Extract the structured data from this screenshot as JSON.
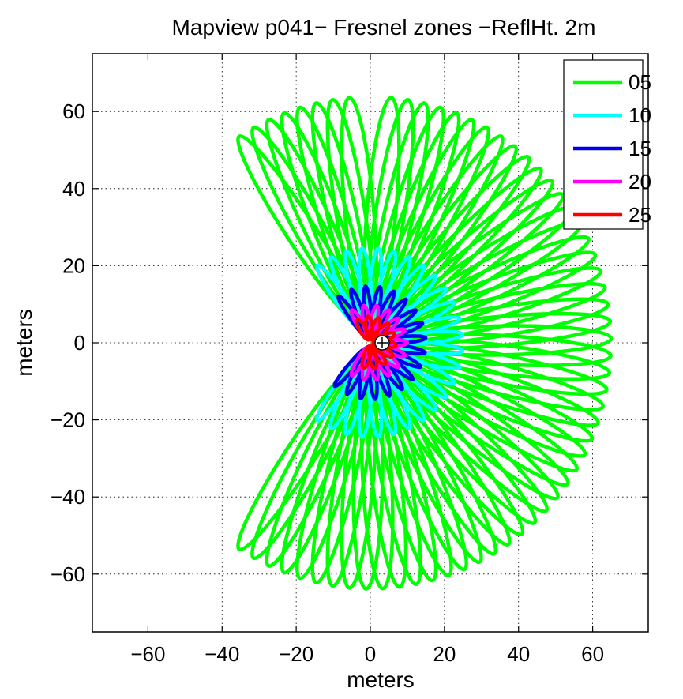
{
  "chart_data": {
    "type": "scatter",
    "title": "Mapview p041− Fresnel zones −ReflHt. 2m",
    "xlabel": "meters",
    "ylabel": "meters",
    "xlim": [
      -75,
      75
    ],
    "ylim": [
      -75,
      75
    ],
    "x_ticks": [
      -60,
      -40,
      -20,
      0,
      20,
      40,
      60
    ],
    "y_ticks": [
      -60,
      -40,
      -20,
      0,
      20,
      40,
      60
    ],
    "x_tick_labels": [
      "−60",
      "−40",
      "−20",
      "0",
      "20",
      "40",
      "60"
    ],
    "y_tick_labels": [
      "−60",
      "−40",
      "−20",
      "0",
      "20",
      "40",
      "60"
    ],
    "grid": true,
    "legend_position": "top-right",
    "receiver_marker": {
      "x": 0,
      "y": 0,
      "symbol": "+"
    },
    "series": [
      {
        "name": "05",
        "color": "#00ff00",
        "max_extent_m": 65,
        "inner_extent_m": 5,
        "ellipse_azimuths_deg": [
          -33,
          -29,
          -25,
          -21,
          -17,
          -13,
          -9,
          -5,
          5,
          9,
          13,
          17,
          21,
          25,
          29,
          33,
          37,
          41,
          45,
          49,
          53,
          57,
          61,
          65,
          69,
          73,
          77,
          81,
          85,
          89,
          93,
          97,
          101,
          105,
          109,
          113,
          117,
          121,
          125,
          129,
          133,
          137,
          141,
          145,
          149,
          153,
          157,
          161,
          165,
          169,
          173,
          177,
          181,
          185,
          189,
          193,
          197,
          201,
          205,
          209,
          213
        ]
      },
      {
        "name": "10",
        "color": "#00ffff",
        "max_extent_m": 25,
        "inner_extent_m": 3,
        "ellipse_azimuths_deg": [
          -35,
          -25,
          -15,
          -5,
          5,
          15,
          25,
          35,
          45,
          55,
          65,
          75,
          85,
          95,
          105,
          115,
          125,
          135,
          145,
          155,
          165,
          175,
          185,
          195,
          205,
          215
        ]
      },
      {
        "name": "15",
        "color": "#0000ee",
        "max_extent_m": 15,
        "inner_extent_m": 1.5,
        "ellipse_azimuths_deg": [
          -35,
          -20,
          -5,
          10,
          25,
          40,
          55,
          70,
          85,
          100,
          115,
          130,
          145,
          160,
          175,
          190,
          205,
          220
        ]
      },
      {
        "name": "20",
        "color": "#ff00ff",
        "max_extent_m": 10,
        "inner_extent_m": 1,
        "ellipse_azimuths_deg": [
          -30,
          -10,
          10,
          30,
          50,
          70,
          90,
          110,
          130,
          150,
          170,
          190,
          210
        ]
      },
      {
        "name": "25",
        "color": "#ff0000",
        "max_extent_m": 7,
        "inner_extent_m": 0.8,
        "ellipse_azimuths_deg": [
          -30,
          -5,
          20,
          45,
          70,
          95,
          120,
          145,
          170,
          195
        ]
      }
    ]
  }
}
